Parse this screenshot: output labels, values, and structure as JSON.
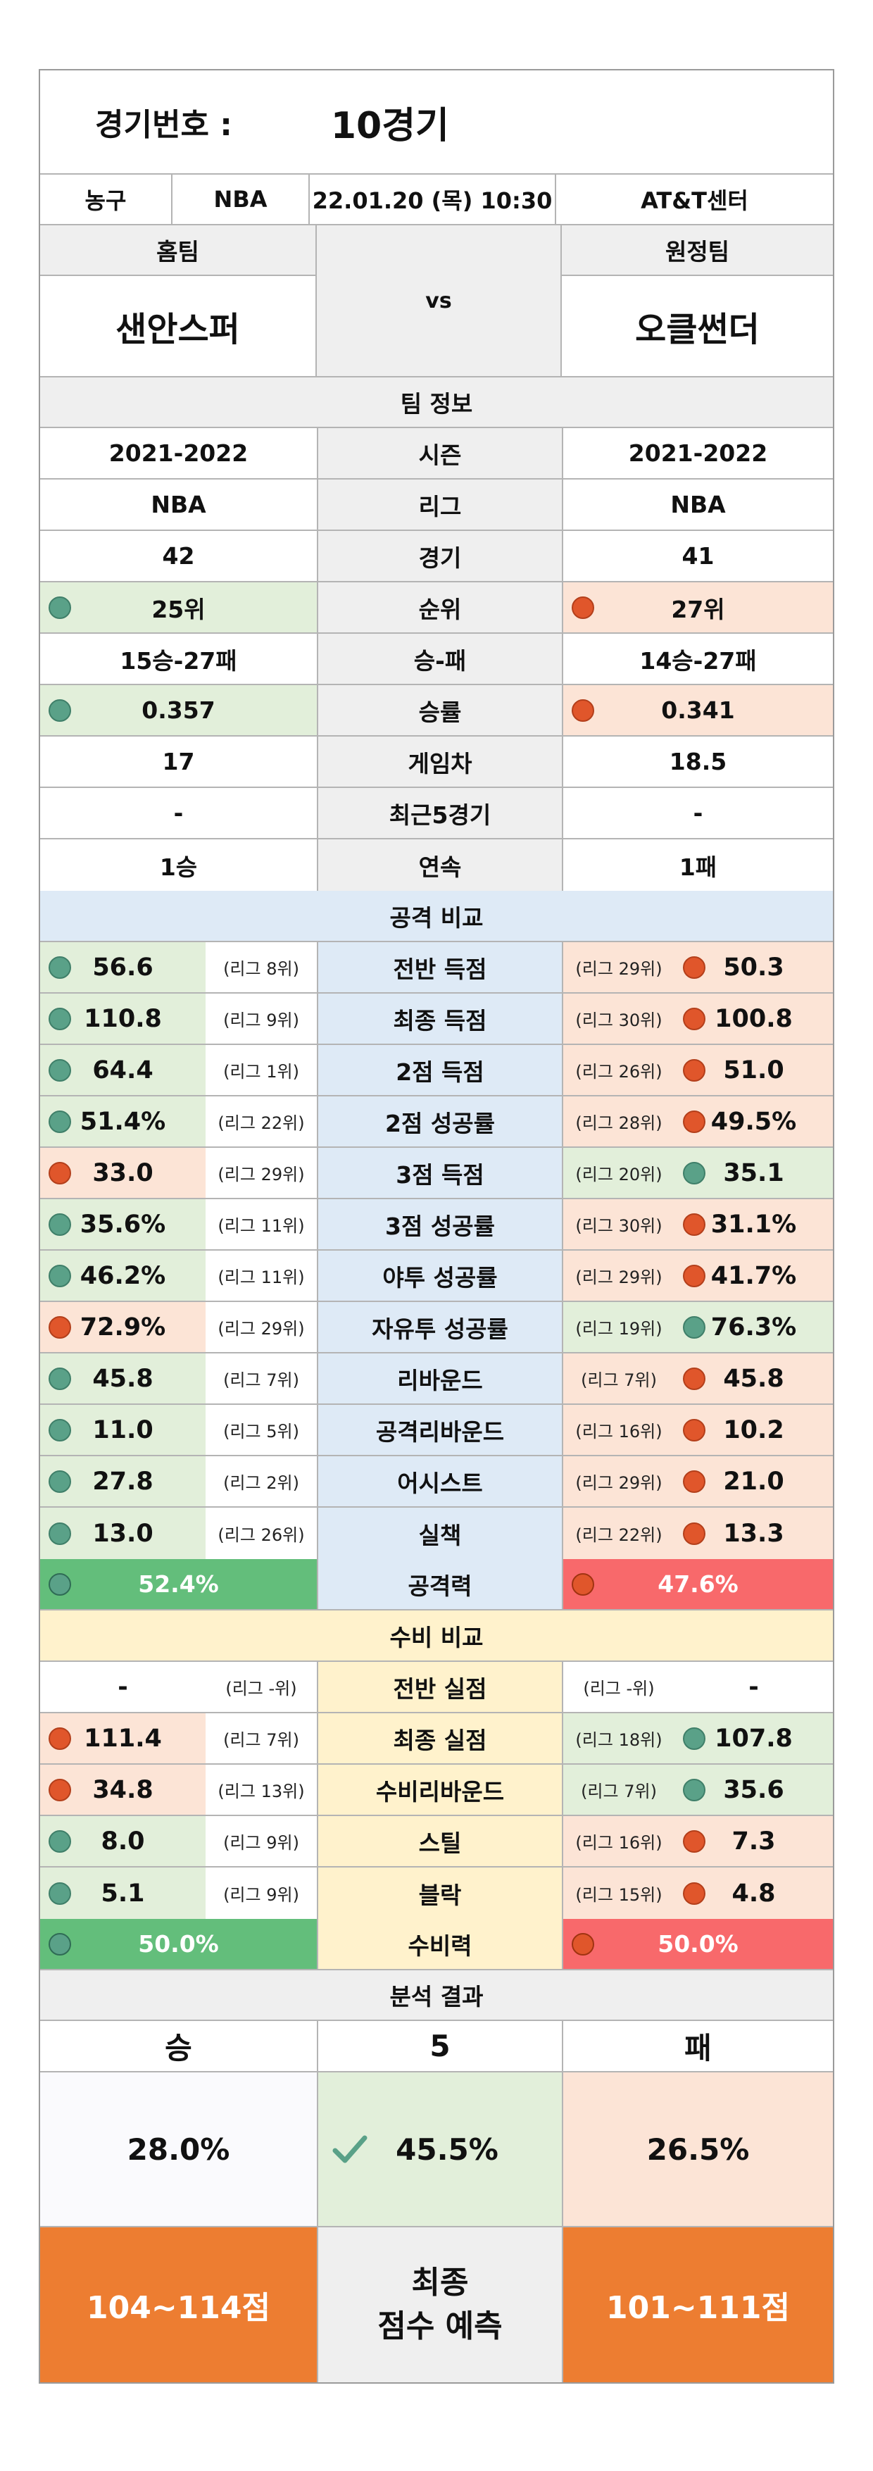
{
  "header": {
    "game_no_label": "경기번호 :",
    "game_no_value": "10경기",
    "sport": "농구",
    "league": "NBA",
    "datetime": "22.01.20 (목) 10:30",
    "venue": "AT&T센터"
  },
  "teams": {
    "home_label": "홈팀",
    "away_label": "원정팀",
    "home_name": "샌안스퍼",
    "away_name": "오클썬더",
    "vs": "vs"
  },
  "team_info": {
    "title": "팀 정보",
    "rows": [
      {
        "label": "시즌",
        "home": "2021-2022",
        "away": "2021-2022"
      },
      {
        "label": "리그",
        "home": "NBA",
        "away": "NBA"
      },
      {
        "label": "경기",
        "home": "42",
        "away": "41"
      },
      {
        "label": "순위",
        "home": "25위",
        "away": "27위"
      },
      {
        "label": "승-패",
        "home": "15승-27패",
        "away": "14승-27패"
      },
      {
        "label": "승률",
        "home": "0.357",
        "away": "0.341"
      },
      {
        "label": "게임차",
        "home": "17",
        "away": "18.5"
      },
      {
        "label": "최근5경기",
        "home": "-",
        "away": "-"
      },
      {
        "label": "연속",
        "home": "1승",
        "away": "1패"
      }
    ]
  },
  "attack": {
    "title": "공격 비교",
    "rows": [
      {
        "label": "전반 득점",
        "home": "56.6",
        "home_rank": "(리그 8위)",
        "away_rank": "(리그 29위)",
        "away": "50.3",
        "home_good": true
      },
      {
        "label": "최종 득점",
        "home": "110.8",
        "home_rank": "(리그 9위)",
        "away_rank": "(리그 30위)",
        "away": "100.8",
        "home_good": true
      },
      {
        "label": "2점 득점",
        "home": "64.4",
        "home_rank": "(리그 1위)",
        "away_rank": "(리그 26위)",
        "away": "51.0",
        "home_good": true
      },
      {
        "label": "2점 성공률",
        "home": "51.4%",
        "home_rank": "(리그 22위)",
        "away_rank": "(리그 28위)",
        "away": "49.5%",
        "home_good": true
      },
      {
        "label": "3점 득점",
        "home": "33.0",
        "home_rank": "(리그 29위)",
        "away_rank": "(리그 20위)",
        "away": "35.1",
        "home_good": false
      },
      {
        "label": "3점 성공률",
        "home": "35.6%",
        "home_rank": "(리그 11위)",
        "away_rank": "(리그 30위)",
        "away": "31.1%",
        "home_good": true
      },
      {
        "label": "야투 성공률",
        "home": "46.2%",
        "home_rank": "(리그 11위)",
        "away_rank": "(리그 29위)",
        "away": "41.7%",
        "home_good": true
      },
      {
        "label": "자유투 성공률",
        "home": "72.9%",
        "home_rank": "(리그 29위)",
        "away_rank": "(리그 19위)",
        "away": "76.3%",
        "home_good": false
      },
      {
        "label": "리바운드",
        "home": "45.8",
        "home_rank": "(리그 7위)",
        "away_rank": "(리그 7위)",
        "away": "45.8",
        "home_good": true
      },
      {
        "label": "공격리바운드",
        "home": "11.0",
        "home_rank": "(리그 5위)",
        "away_rank": "(리그 16위)",
        "away": "10.2",
        "home_good": true
      },
      {
        "label": "어시스트",
        "home": "27.8",
        "home_rank": "(리그 2위)",
        "away_rank": "(리그 29위)",
        "away": "21.0",
        "home_good": true
      },
      {
        "label": "실책",
        "home": "13.0",
        "home_rank": "(리그 26위)",
        "away_rank": "(리그 22위)",
        "away": "13.3",
        "home_good": true
      }
    ],
    "power_label": "공격력",
    "home_power": "52.4%",
    "away_power": "47.6%"
  },
  "defense": {
    "title": "수비 비교",
    "rows": [
      {
        "label": "전반 실점",
        "home": "-",
        "home_rank": "(리그 -위)",
        "away_rank": "(리그 -위)",
        "away": "-",
        "none": true
      },
      {
        "label": "최종 실점",
        "home": "111.4",
        "home_rank": "(리그 7위)",
        "away_rank": "(리그 18위)",
        "away": "107.8",
        "home_good": false
      },
      {
        "label": "수비리바운드",
        "home": "34.8",
        "home_rank": "(리그 13위)",
        "away_rank": "(리그 7위)",
        "away": "35.6",
        "home_good": false
      },
      {
        "label": "스틸",
        "home": "8.0",
        "home_rank": "(리그 9위)",
        "away_rank": "(리그 16위)",
        "away": "7.3",
        "home_good": true
      },
      {
        "label": "블락",
        "home": "5.1",
        "home_rank": "(리그 9위)",
        "away_rank": "(리그 15위)",
        "away": "4.8",
        "home_good": true
      }
    ],
    "power_label": "수비력",
    "home_power": "50.0%",
    "away_power": "50.0%"
  },
  "result": {
    "title": "분석 결과",
    "win_label": "승",
    "draw_label": "5",
    "lose_label": "패",
    "win_pct": "28.0%",
    "draw_pct": "45.5%",
    "lose_pct": "26.5%",
    "home_score": "104~114점",
    "prediction_label_1": "최종",
    "prediction_label_2": "점수 예측",
    "away_score": "101~111점"
  },
  "colors": {
    "good": "#e2efda",
    "bad": "#fce4d6",
    "good_dot": "#5aa188",
    "bad_dot": "#e0562b",
    "power_good": "#63be7b",
    "power_bad": "#f8696b",
    "score_orange": "#ed7d31"
  }
}
